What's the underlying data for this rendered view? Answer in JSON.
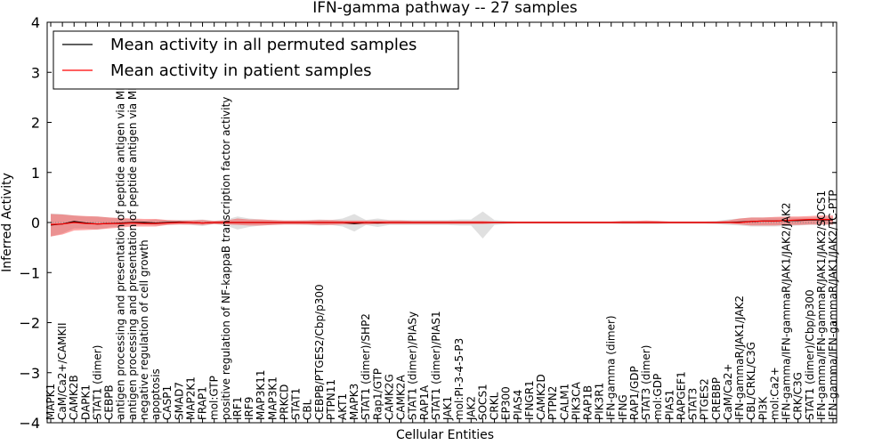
{
  "chart_data": {
    "type": "line",
    "title": "IFN-gamma pathway -- 27 samples",
    "xlabel": "Cellular Entities",
    "ylabel": "Inferred Activity",
    "ylim": [
      -4,
      4
    ],
    "yticks": [
      -4,
      -3,
      -2,
      -1,
      0,
      1,
      2,
      3,
      4
    ],
    "ytick_labels": [
      "−4",
      "−3",
      "−2",
      "−1",
      "0",
      "1",
      "2",
      "3",
      "4"
    ],
    "grid": false,
    "legend_position": "upper-left",
    "zero_line": {
      "value": 0,
      "style": "dotted"
    },
    "categories": [
      "MAPK1",
      "CaM/Ca2+/CAMKII",
      "CAMK2B",
      "DAPK1",
      "STAT1 (dimer)",
      "CEBPB",
      "antigen processing and presentation of peptide antigen via MHC class I",
      "antigen processing and presentation of peptide antigen via MHC class II",
      "negative regulation of cell growth",
      "apoptosis",
      "CASP1",
      "SMAD7",
      "MAP2K1",
      "FRAP1",
      "mol:GTP",
      "positive regulation of NF-kappaB transcription factor activity",
      "IRF1",
      "IRF9",
      "MAP3K11",
      "MAP3K1",
      "PRKCD",
      "STAT1",
      "CBL",
      "CEBPB/PTGES2/Cbp/p300",
      "PTPN11",
      "AKT1",
      "MAPK3",
      "STAT1 (dimer)/SHP2",
      "Rap1/GTP",
      "CAMK2G",
      "CAMK2A",
      "STAT1 (dimer)/PIASy",
      "RAP1A",
      "STAT1 (dimer)/PIAS1",
      "JAK1",
      "mol:PI-3-4-5-P3",
      "JAK2",
      "SOCS1",
      "CRKL",
      "EP300",
      "PIAS4",
      "IFNGR1",
      "CAMK2D",
      "PTPN2",
      "CALM1",
      "PIK3CA",
      "RAP1B",
      "PIK3R1",
      "IFN-gamma (dimer)",
      "IFNG",
      "RAP1/GDP",
      "STAT3 (dimer)",
      "mol:GDP",
      "PIAS1",
      "RAPGEF1",
      "STAT3",
      "PTGES2",
      "CREBBP",
      "CaM/Ca2+",
      "IFN-gammaR/JAK1/JAK2",
      "CBL/CRKL/C3G",
      "PI3K",
      "mol:Ca2+",
      "IFN-gamma/IFN-gammaR/JAK1/JAK2/JAK2",
      "CRK/C3G",
      "STAT1 (dimer)/Cbp/p300",
      "IFN-gamma/IFN-gammaR/JAK1/JAK2/SOCS1",
      "IFN-gamma/IFN-gammaR/JAK1/JAK2/TC-PTP"
    ],
    "series": [
      {
        "name": "Mean activity in all permuted samples",
        "color": "#000000",
        "values": [
          -0.05,
          -0.03,
          0.02,
          -0.01,
          -0.03,
          -0.02,
          -0.01,
          0.0,
          0.0,
          -0.01,
          0.0,
          0.01,
          0.0,
          -0.01,
          0.0,
          0.0,
          0.0,
          0.0,
          0.0,
          0.0,
          0.0,
          0.0,
          0.0,
          0.0,
          0.0,
          0.0,
          -0.02,
          0.0,
          -0.01,
          0.0,
          0.0,
          0.0,
          0.0,
          0.0,
          0.0,
          0.0,
          0.0,
          0.0,
          0.0,
          0.0,
          0.0,
          0.0,
          0.0,
          0.0,
          0.0,
          0.0,
          0.0,
          0.0,
          0.0,
          0.0,
          0.0,
          0.0,
          0.0,
          0.0,
          0.0,
          0.0,
          0.0,
          0.0,
          0.0,
          0.01,
          0.02,
          0.03,
          0.03,
          0.04,
          0.04,
          0.05,
          0.05,
          0.05
        ],
        "band_lower": [
          -0.28,
          -0.22,
          -0.12,
          -0.12,
          -0.14,
          -0.1,
          -0.08,
          -0.05,
          -0.04,
          -0.06,
          -0.05,
          -0.04,
          -0.05,
          -0.07,
          -0.03,
          -0.06,
          -0.14,
          -0.09,
          -0.06,
          -0.05,
          -0.04,
          -0.04,
          -0.05,
          -0.06,
          -0.05,
          -0.08,
          -0.18,
          -0.05,
          -0.09,
          -0.05,
          -0.05,
          -0.05,
          -0.05,
          -0.05,
          -0.05,
          -0.06,
          -0.06,
          -0.32,
          -0.05,
          -0.03,
          -0.02,
          -0.02,
          -0.02,
          -0.02,
          -0.02,
          -0.02,
          -0.02,
          -0.02,
          -0.02,
          -0.03,
          -0.03,
          -0.03,
          -0.03,
          -0.02,
          -0.02,
          -0.02,
          -0.02,
          -0.03,
          -0.05,
          -0.06,
          -0.08,
          -0.08,
          -0.08,
          -0.07,
          -0.06,
          -0.05,
          -0.05,
          -0.05
        ],
        "band_upper": [
          0.18,
          0.17,
          0.14,
          0.12,
          0.12,
          0.1,
          0.08,
          0.07,
          0.04,
          0.06,
          0.05,
          0.05,
          0.05,
          0.06,
          0.03,
          0.06,
          0.12,
          0.08,
          0.06,
          0.05,
          0.04,
          0.04,
          0.05,
          0.06,
          0.05,
          0.08,
          0.17,
          0.05,
          0.08,
          0.05,
          0.05,
          0.05,
          0.05,
          0.05,
          0.05,
          0.06,
          0.06,
          0.22,
          0.05,
          0.03,
          0.02,
          0.02,
          0.02,
          0.02,
          0.02,
          0.02,
          0.02,
          0.02,
          0.02,
          0.03,
          0.03,
          0.03,
          0.03,
          0.02,
          0.02,
          0.02,
          0.02,
          0.03,
          0.06,
          0.08,
          0.1,
          0.1,
          0.1,
          0.1,
          0.1,
          0.1,
          0.1,
          0.1
        ]
      },
      {
        "name": "Mean activity in patient samples",
        "color": "#ff0000",
        "values": [
          -0.04,
          -0.03,
          0.0,
          -0.02,
          -0.03,
          -0.02,
          -0.02,
          -0.01,
          -0.02,
          -0.02,
          -0.01,
          0.0,
          0.0,
          -0.01,
          0.0,
          0.0,
          0.0,
          0.0,
          0.0,
          0.0,
          0.0,
          0.0,
          0.0,
          0.0,
          0.0,
          0.0,
          0.0,
          0.0,
          0.0,
          0.0,
          0.0,
          0.0,
          0.0,
          0.0,
          0.0,
          0.0,
          0.0,
          0.0,
          0.0,
          0.0,
          0.0,
          0.0,
          0.0,
          0.0,
          0.0,
          0.0,
          0.0,
          0.0,
          0.0,
          0.0,
          0.0,
          0.0,
          0.0,
          0.0,
          0.0,
          0.0,
          0.0,
          0.0,
          0.0,
          0.0,
          0.02,
          0.03,
          0.03,
          0.04,
          0.05,
          0.06,
          0.06,
          0.06
        ],
        "band_lower": [
          -0.28,
          -0.24,
          -0.16,
          -0.15,
          -0.14,
          -0.12,
          -0.1,
          -0.08,
          -0.08,
          -0.08,
          -0.05,
          -0.04,
          -0.04,
          -0.05,
          -0.03,
          -0.04,
          -0.05,
          -0.06,
          -0.06,
          -0.05,
          -0.04,
          -0.04,
          -0.04,
          -0.05,
          -0.05,
          -0.04,
          -0.04,
          -0.04,
          -0.03,
          -0.03,
          -0.03,
          -0.03,
          -0.03,
          -0.03,
          -0.03,
          -0.03,
          -0.03,
          -0.03,
          -0.02,
          -0.02,
          -0.02,
          -0.02,
          -0.02,
          -0.02,
          -0.02,
          -0.02,
          -0.02,
          -0.02,
          -0.02,
          -0.02,
          -0.02,
          -0.02,
          -0.02,
          -0.02,
          -0.02,
          -0.02,
          -0.02,
          -0.02,
          -0.02,
          -0.04,
          -0.06,
          -0.06,
          -0.06,
          -0.05,
          -0.05,
          -0.04,
          -0.04,
          -0.04
        ],
        "band_upper": [
          0.17,
          0.16,
          0.14,
          0.13,
          0.12,
          0.1,
          0.09,
          0.08,
          0.07,
          0.07,
          0.05,
          0.04,
          0.04,
          0.05,
          0.03,
          0.04,
          0.08,
          0.06,
          0.06,
          0.05,
          0.04,
          0.04,
          0.04,
          0.05,
          0.05,
          0.04,
          0.04,
          0.04,
          0.04,
          0.04,
          0.04,
          0.03,
          0.03,
          0.03,
          0.03,
          0.03,
          0.03,
          0.03,
          0.02,
          0.02,
          0.02,
          0.02,
          0.02,
          0.02,
          0.02,
          0.02,
          0.02,
          0.02,
          0.02,
          0.03,
          0.03,
          0.04,
          0.03,
          0.02,
          0.02,
          0.02,
          0.02,
          0.02,
          0.04,
          0.08,
          0.1,
          0.1,
          0.11,
          0.12,
          0.12,
          0.13,
          0.14,
          0.14
        ]
      }
    ]
  }
}
